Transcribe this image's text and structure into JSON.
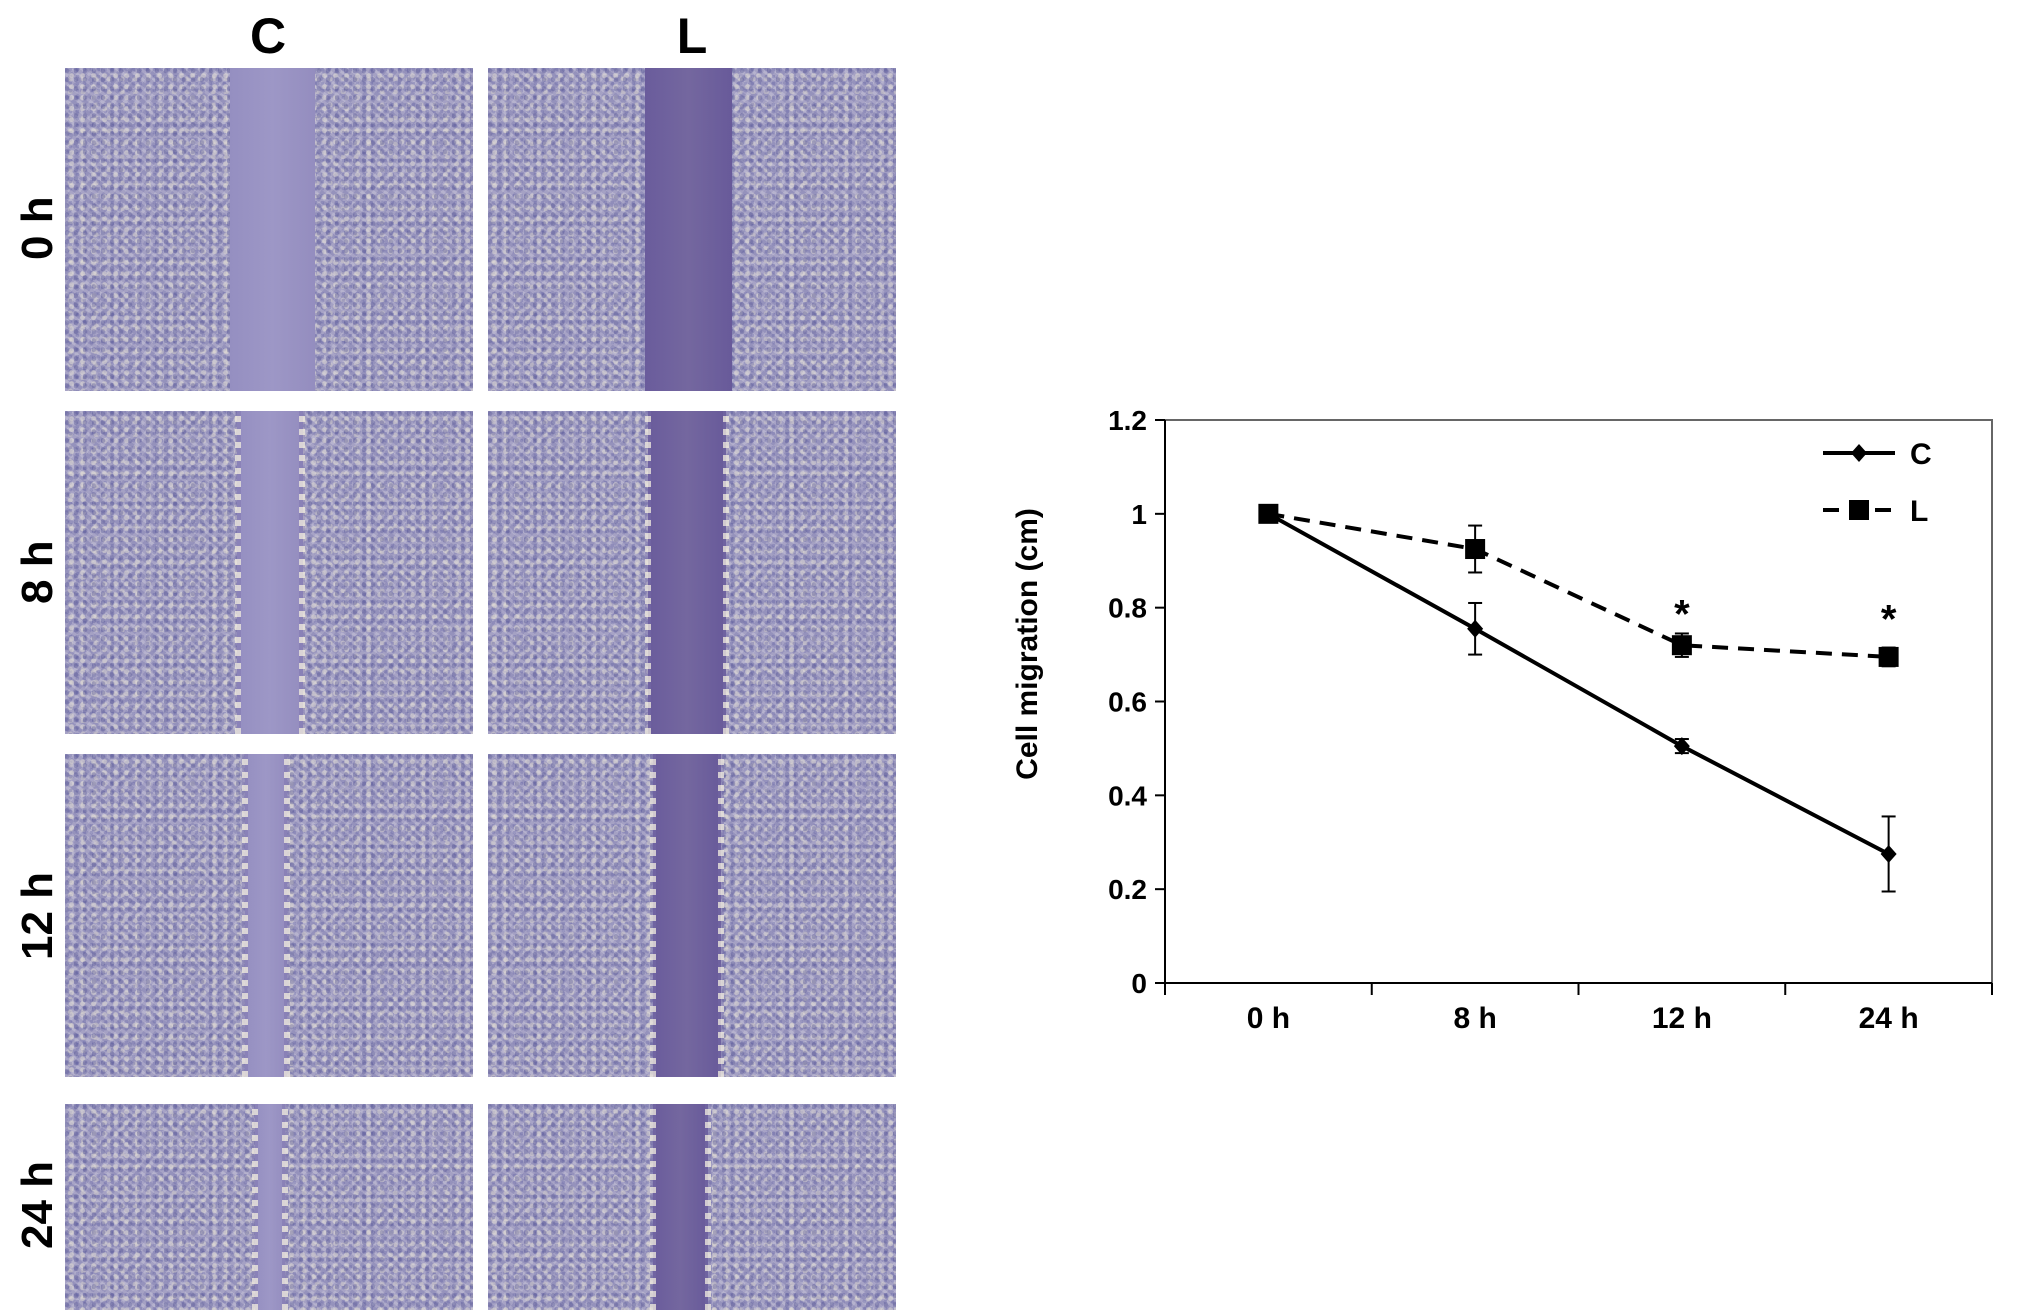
{
  "figure": {
    "columns": [
      "C",
      "L"
    ],
    "rows": [
      "0 h",
      "8 h",
      "12 h",
      "24 h"
    ]
  },
  "chart_data": {
    "type": "line",
    "title": "",
    "xlabel": "",
    "ylabel": "Cell migration (cm)",
    "categories": [
      "0 h",
      "8 h",
      "12 h",
      "24 h"
    ],
    "ylim": [
      0,
      1.2
    ],
    "yticks": [
      "0",
      "0.2",
      "0.4",
      "0.6",
      "0.8",
      "1",
      "1.2"
    ],
    "grid": false,
    "legend_position": "top-right",
    "series": [
      {
        "name": "C",
        "values": [
          1.0,
          0.755,
          0.505,
          0.275
        ],
        "errors": [
          0.0,
          0.055,
          0.015,
          0.08
        ],
        "line_style": "solid",
        "marker": "diamond",
        "color": "#000000"
      },
      {
        "name": "L",
        "values": [
          1.0,
          0.925,
          0.72,
          0.695
        ],
        "errors": [
          0.0,
          0.05,
          0.025,
          0.02
        ],
        "line_style": "dashed",
        "marker": "square",
        "color": "#000000"
      }
    ],
    "annotations": [
      {
        "text": "*",
        "category": "12 h",
        "y": 0.8
      },
      {
        "text": "*",
        "category": "24 h",
        "y": 0.79
      }
    ]
  }
}
